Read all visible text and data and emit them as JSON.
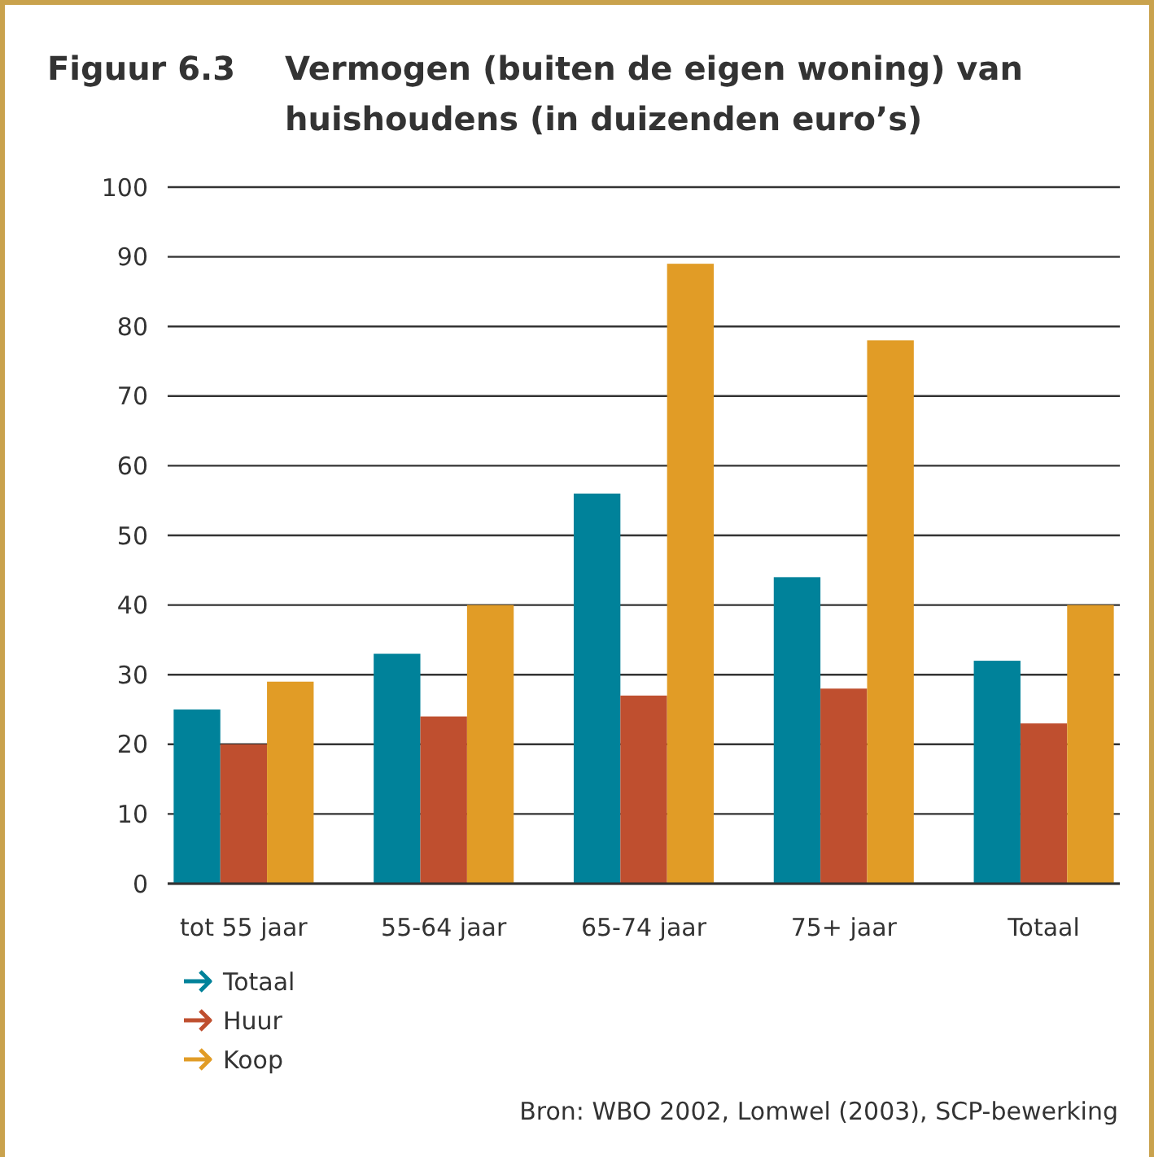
{
  "chart_data": {
    "type": "bar",
    "title": "Vermogen (buiten de eigen woning) van huishoudens (in duizenden euro’s)",
    "categories": [
      "tot 55 jaar",
      "55-64 jaar",
      "65-74 jaar",
      "75+ jaar",
      "Totaal"
    ],
    "series": [
      {
        "name": "Totaal",
        "color": "#00829a",
        "values": [
          25,
          33,
          56,
          44,
          32
        ]
      },
      {
        "name": "Huur",
        "color": "#bf4f2f",
        "values": [
          20,
          24,
          27,
          28,
          23
        ]
      },
      {
        "name": "Koop",
        "color": "#e19c26",
        "values": [
          29,
          40,
          89,
          78,
          40
        ]
      }
    ],
    "ylim": [
      0,
      100
    ],
    "yticks": [
      0,
      10,
      20,
      30,
      40,
      50,
      60,
      70,
      80,
      90,
      100
    ],
    "grid": "y",
    "legend": "bottom left",
    "annotations": [
      "Figuur 6.3",
      "Bron: WBO 2002, Lomwel (2003), SCP-bewerking"
    ]
  }
}
